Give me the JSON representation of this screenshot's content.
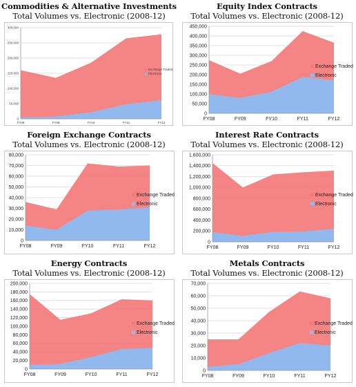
{
  "colors": {
    "exchange": "#f4797b",
    "electronic": "#8bbcf2",
    "frame": "#c8c8c8",
    "grid": "#d9d9d9"
  },
  "chart_data": [
    {
      "type": "area",
      "title": "Commodities & Alternative Investments",
      "subtitle": "Total Volumes vs. Electronic (2008-12)",
      "categories": [
        "FY08",
        "FY09",
        "FY10",
        "FY11",
        "FY12"
      ],
      "yticks": [
        "0",
        "50,000",
        "100,000",
        "150,000",
        "200,000",
        "250,000",
        "300,000"
      ],
      "ylim": [
        0,
        300000
      ],
      "legend_position": "right",
      "series": [
        {
          "name": "Exchange Traded",
          "values": [
            160000,
            135000,
            185000,
            265000,
            278000
          ]
        },
        {
          "name": "Electronic",
          "values": [
            5000,
            8000,
            22000,
            48000,
            62000
          ]
        }
      ]
    },
    {
      "type": "area",
      "title": "Equity Index Contracts",
      "subtitle": "Total Volumes vs. Electronic (2008-12)",
      "categories": [
        "FY08",
        "FY09",
        "FY10",
        "FY11",
        "FY12"
      ],
      "yticks": [
        "0",
        "50,000",
        "100,000",
        "150,000",
        "200,000",
        "250,000",
        "300,000",
        "350,000",
        "400,000",
        "450,000"
      ],
      "ylim": [
        0,
        450000
      ],
      "legend_position": "right",
      "series": [
        {
          "name": "Exchange Traded",
          "values": [
            275000,
            205000,
            270000,
            425000,
            365000
          ]
        },
        {
          "name": "Electronic",
          "values": [
            100000,
            80000,
            112000,
            188000,
            170000
          ]
        }
      ]
    },
    {
      "type": "area",
      "title": "Foreign Exchange Contracts",
      "subtitle": "Total Volumes vs. Electronic (2008-12)",
      "categories": [
        "FY08",
        "FY09",
        "FY10",
        "FY11",
        "FY12"
      ],
      "yticks": [
        "0",
        "10,000",
        "20,000",
        "30,000",
        "40,000",
        "50,000",
        "60,000",
        "70,000",
        "80,000"
      ],
      "ylim": [
        0,
        80000
      ],
      "legend_position": "right",
      "series": [
        {
          "name": "Exchange Traded",
          "values": [
            36000,
            29000,
            72000,
            69000,
            70000
          ]
        },
        {
          "name": "Electronic",
          "values": [
            14000,
            10000,
            28000,
            29000,
            31000
          ]
        }
      ]
    },
    {
      "type": "area",
      "title": "Interest Rate Contracts",
      "subtitle": "Total Volumes vs. Electronic (2008-12)",
      "categories": [
        "FY08",
        "FY09",
        "FY10",
        "FY11",
        "FY12"
      ],
      "yticks": [
        "0",
        "200,000",
        "400,000",
        "600,000",
        "800,000",
        "1,000,000",
        "1,200,000",
        "1,400,000",
        "1,600,000"
      ],
      "ylim": [
        0,
        1600000
      ],
      "legend_position": "right",
      "series": [
        {
          "name": "Exchange Traded",
          "values": [
            1450000,
            1000000,
            1240000,
            1280000,
            1310000
          ]
        },
        {
          "name": "Electronic",
          "values": [
            180000,
            110000,
            185000,
            195000,
            240000
          ]
        }
      ]
    },
    {
      "type": "area",
      "title": "Energy Contracts",
      "subtitle": "Total Volumes vs. Electronic (2008-12)",
      "categories": [
        "FY08",
        "FY09",
        "FY10",
        "FY11",
        "FY12"
      ],
      "yticks": [
        "0",
        "20,000",
        "40,000",
        "60,000",
        "80,000",
        "100,000",
        "120,000",
        "140,000",
        "160,000",
        "180,000",
        "200,000"
      ],
      "ylim": [
        0,
        200000
      ],
      "legend_position": "right",
      "series": [
        {
          "name": "Exchange Traded",
          "values": [
            175000,
            115000,
            130000,
            163000,
            160000
          ]
        },
        {
          "name": "Electronic",
          "values": [
            10000,
            12000,
            28000,
            47000,
            49000
          ]
        }
      ]
    },
    {
      "type": "area",
      "title": "Metals Contracts",
      "subtitle": "Total Volumes vs. Electronic (2008-12)",
      "categories": [
        "FY08",
        "FY09",
        "FY10",
        "FY11",
        "FY12"
      ],
      "yticks": [
        "0",
        "10,000",
        "20,000",
        "30,000",
        "40,000",
        "50,000",
        "60,000",
        "70,000"
      ],
      "ylim": [
        0,
        70000
      ],
      "legend_position": "right",
      "series": [
        {
          "name": "Exchange Traded",
          "values": [
            25000,
            25000,
            47000,
            63500,
            58000
          ]
        },
        {
          "name": "Electronic",
          "values": [
            3000,
            5000,
            14000,
            22000,
            20000
          ]
        }
      ]
    }
  ]
}
